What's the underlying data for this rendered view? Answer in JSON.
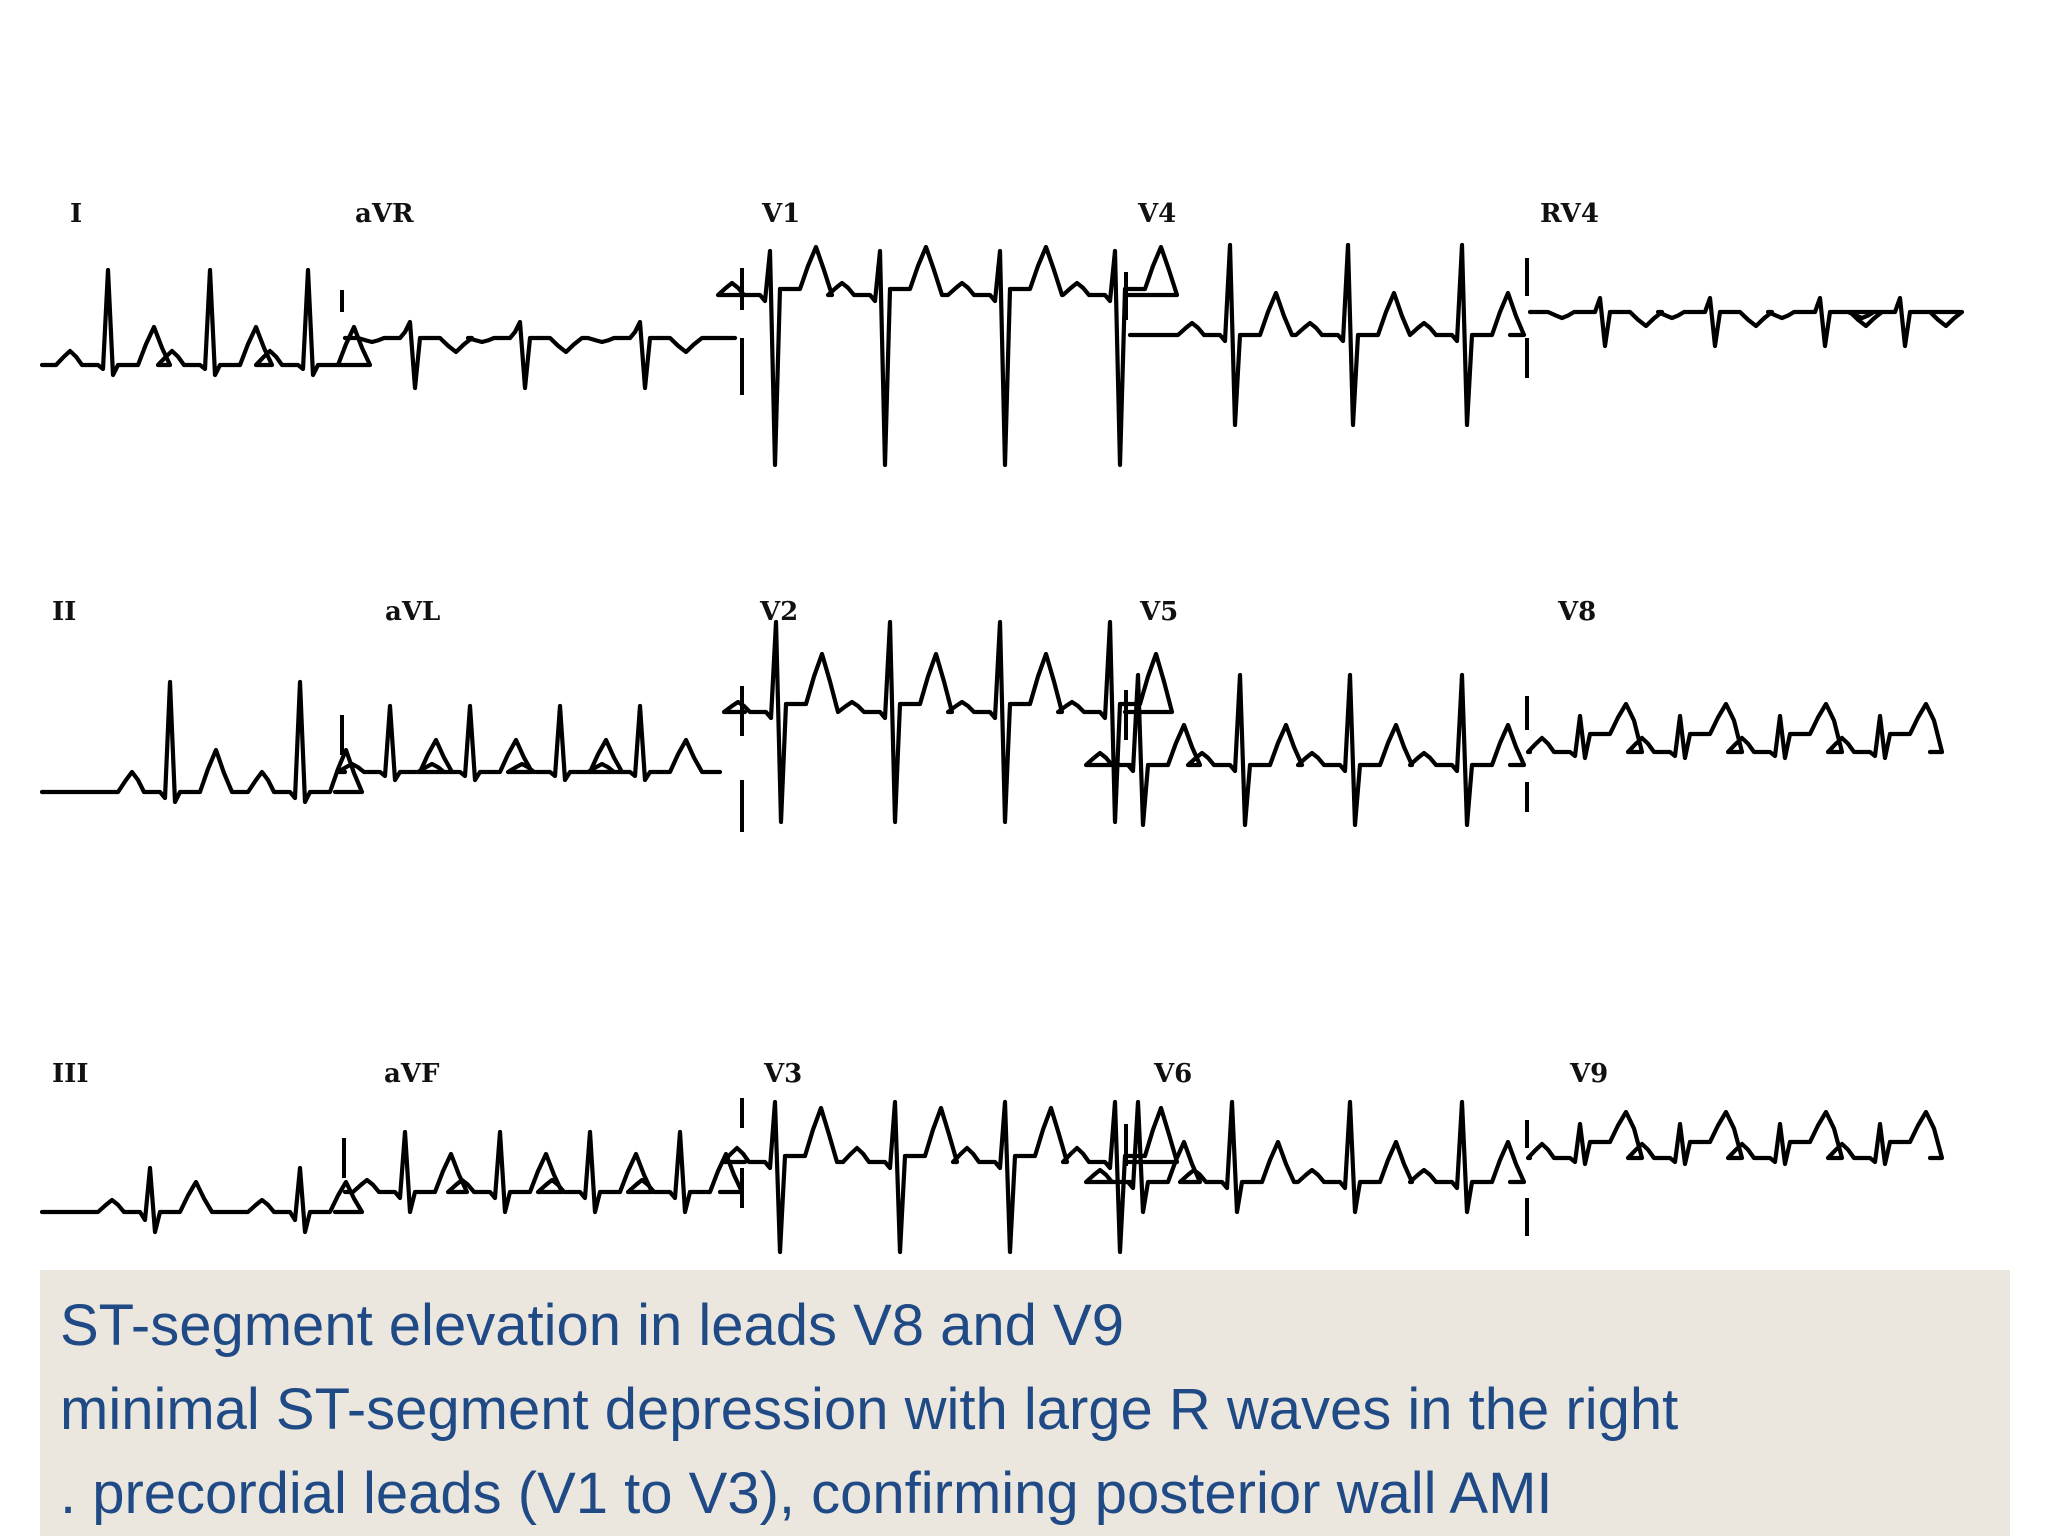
{
  "leads": {
    "I": "I",
    "aVR": "aVR",
    "V1": "V1",
    "V4": "V4",
    "RV4": "RV4",
    "II": "II",
    "aVL": "aVL",
    "V2": "V2",
    "V5": "V5",
    "V8": "V8",
    "III": "III",
    "aVF": "aVF",
    "V3": "V3",
    "V6": "V6",
    "V9": "V9"
  },
  "caption": {
    "line1": " ST-segment elevation in leads V8 and V9",
    "line2": "minimal ST-segment depression with large R waves in the right",
    "line3": ". precordial leads (V1 to V3), confirming posterior wall AMI"
  },
  "colors": {
    "caption_text": "#1f4a86",
    "caption_bg": "#ebe7de",
    "trace": "#000000"
  }
}
